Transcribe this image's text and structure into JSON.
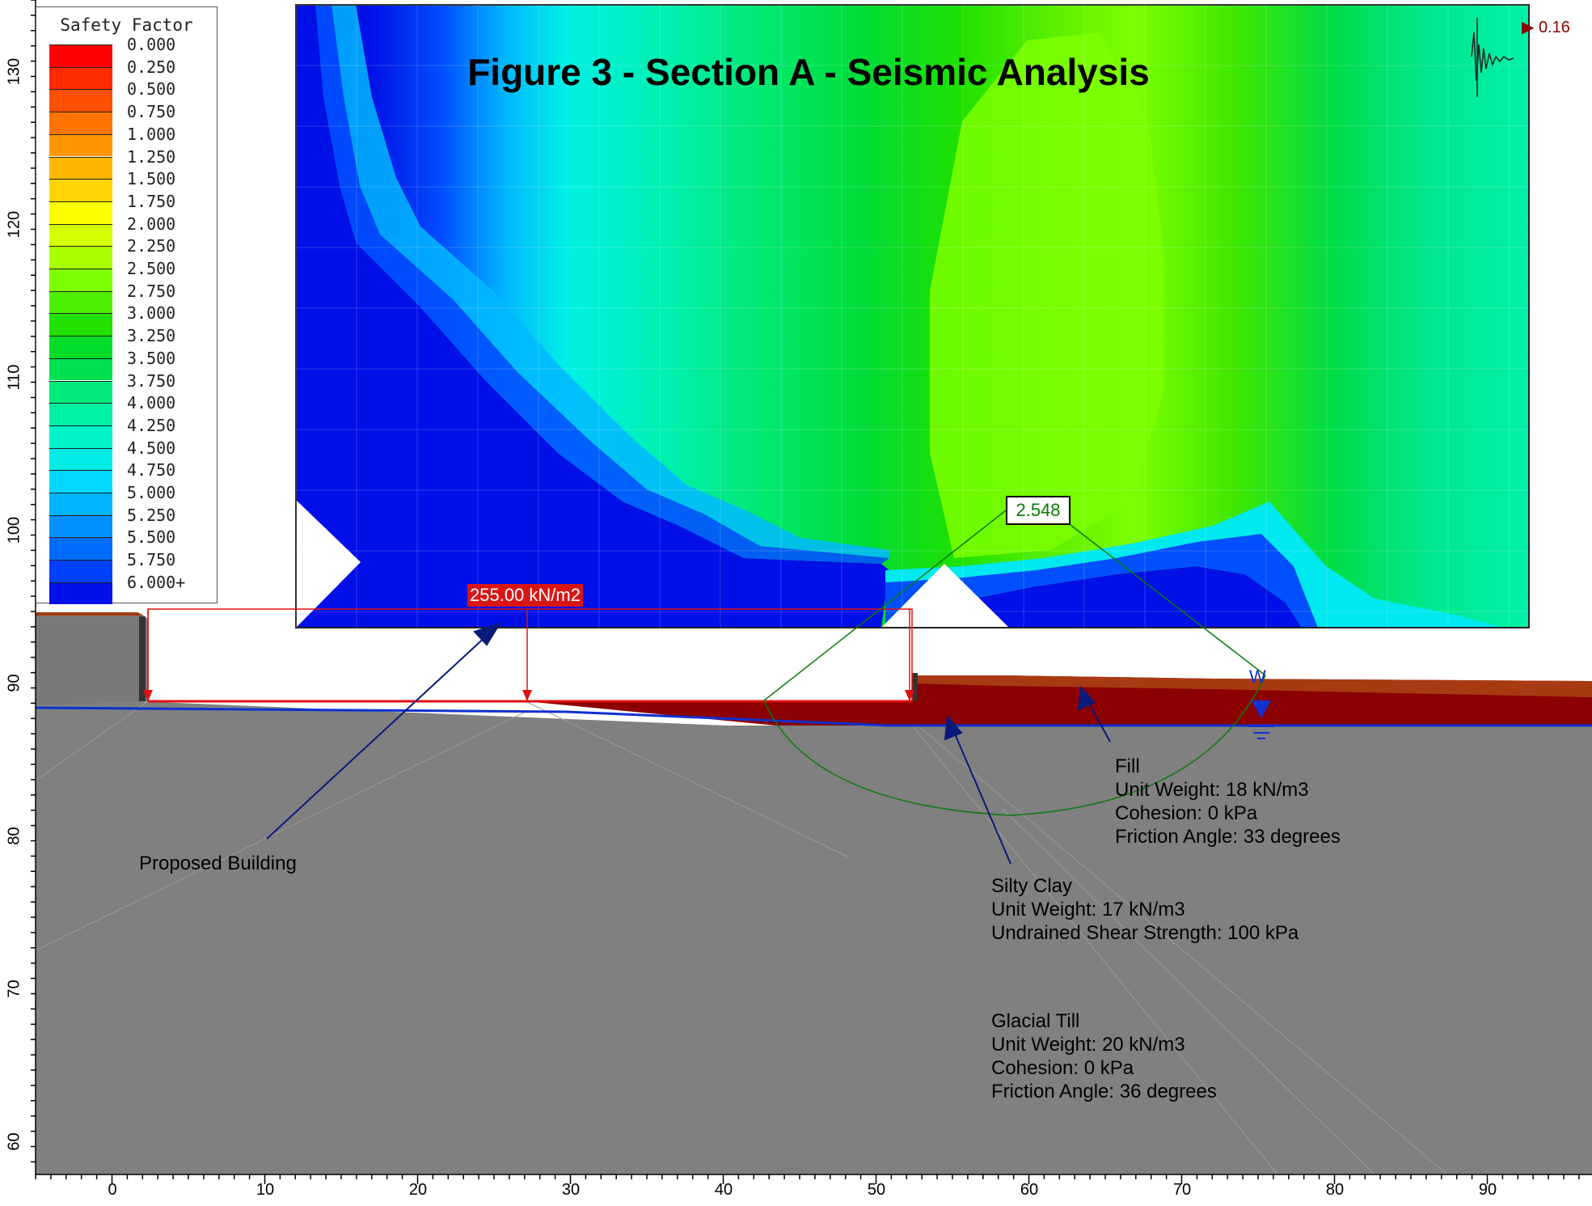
{
  "title": "Figure 3 - Section A - Seismic Analysis",
  "legend": {
    "title": "Safety Factor",
    "entries": [
      {
        "label": "0.000",
        "color": "#ff0000"
      },
      {
        "label": "0.250",
        "color": "#ff2a00"
      },
      {
        "label": "0.500",
        "color": "#ff5000"
      },
      {
        "label": "0.750",
        "color": "#ff7400"
      },
      {
        "label": "1.000",
        "color": "#ff9600"
      },
      {
        "label": "1.250",
        "color": "#ffb400"
      },
      {
        "label": "1.500",
        "color": "#ffd400"
      },
      {
        "label": "1.750",
        "color": "#ffff00"
      },
      {
        "label": "2.000",
        "color": "#d4ff00"
      },
      {
        "label": "2.250",
        "color": "#a8ff00"
      },
      {
        "label": "2.500",
        "color": "#7cff00"
      },
      {
        "label": "2.750",
        "color": "#4cf000"
      },
      {
        "label": "3.000",
        "color": "#22e000"
      },
      {
        "label": "3.250",
        "color": "#00dc28"
      },
      {
        "label": "3.500",
        "color": "#00e050"
      },
      {
        "label": "3.750",
        "color": "#00ea7c"
      },
      {
        "label": "4.000",
        "color": "#00f0a4"
      },
      {
        "label": "4.250",
        "color": "#00f4c8"
      },
      {
        "label": "4.500",
        "color": "#00ece6"
      },
      {
        "label": "4.750",
        "color": "#00d8ff"
      },
      {
        "label": "5.000",
        "color": "#00b4ff"
      },
      {
        "label": "5.250",
        "color": "#0090ff"
      },
      {
        "label": "5.500",
        "color": "#006cff"
      },
      {
        "label": "5.750",
        "color": "#0040ff"
      },
      {
        "label": "6.000+",
        "color": "#0010e6"
      }
    ]
  },
  "critical_factor": "2.548",
  "load_label": "255.00 kN/m2",
  "seismic_label": "▶ 0.16",
  "water_label": "W",
  "annotations": {
    "building": "Proposed Building",
    "fill": [
      "Fill",
      "Unit Weight: 18 kN/m3",
      "Cohesion: 0 kPa",
      "Friction Angle: 33 degrees"
    ],
    "silty_clay": [
      "Silty Clay",
      "Unit Weight: 17 kN/m3",
      "Undrained Shear Strength: 100 kPa"
    ],
    "glacial_till": [
      "Glacial Till",
      "Unit Weight: 20 kN/m3",
      "Cohesion: 0 kPa",
      "Friction Angle: 36 degrees"
    ]
  },
  "axes": {
    "x_ticks": [
      "0",
      "10",
      "20",
      "30",
      "40",
      "50",
      "60",
      "70",
      "80",
      "90"
    ],
    "y_ticks": [
      "130",
      "120",
      "110",
      "100",
      "90",
      "80",
      "70",
      "60"
    ]
  },
  "colors": {
    "soil_gray": "#808080",
    "fill_dark_red": "#8b0000",
    "water_blue": "#1030d0",
    "load_red": "#e01010",
    "slip_green": "#0a7a0a",
    "arrow_navy": "#0a1a7a"
  }
}
